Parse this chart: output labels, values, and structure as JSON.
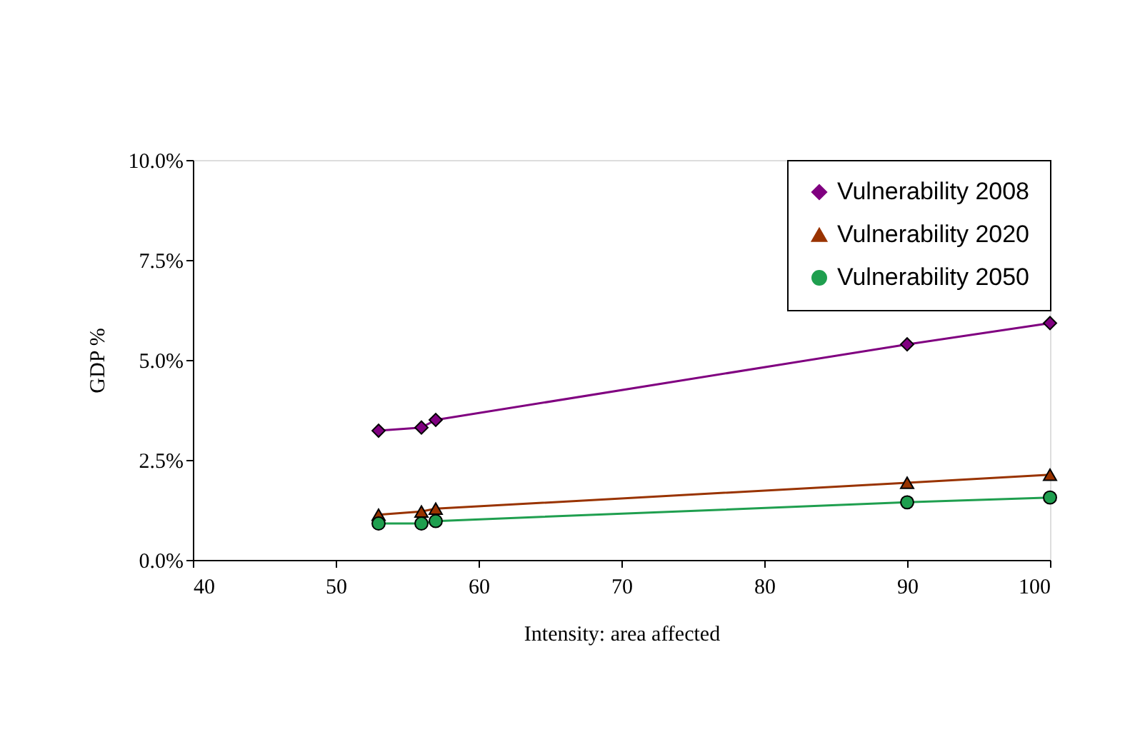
{
  "chart_data": {
    "type": "line",
    "xlabel": "Intensity: area affected",
    "ylabel": "GDP %",
    "x": [
      53,
      56,
      57,
      90,
      100
    ],
    "series": [
      {
        "name": "Vulnerability 2008",
        "color": "#800080",
        "marker": "diamond",
        "values": [
          3.23,
          3.31,
          3.5,
          5.39,
          5.92
        ]
      },
      {
        "name": "Vulnerability 2020",
        "color": "#993300",
        "marker": "triangle",
        "values": [
          1.13,
          1.21,
          1.28,
          1.93,
          2.13
        ]
      },
      {
        "name": "Vulnerability 2050",
        "color": "#1f9f4f",
        "marker": "circle",
        "values": [
          0.91,
          0.91,
          0.97,
          1.44,
          1.56
        ]
      }
    ],
    "xlim": [
      40,
      100
    ],
    "xticks": [
      40,
      50,
      60,
      70,
      80,
      90,
      100
    ],
    "ylim": [
      0,
      10
    ],
    "yticks": [
      {
        "value": 0,
        "label": "0.0%"
      },
      {
        "value": 2.5,
        "label": "2.5%"
      },
      {
        "value": 5,
        "label": "5.0%"
      },
      {
        "value": 7.5,
        "label": "7.5%"
      },
      {
        "value": 10,
        "label": "10.0%"
      }
    ],
    "grid": false,
    "legend": "top right"
  }
}
